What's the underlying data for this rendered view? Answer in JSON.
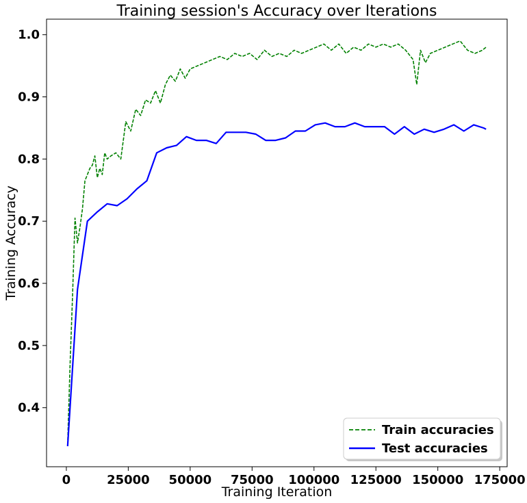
{
  "chart_data": {
    "type": "line",
    "title": "Training session's Accuracy over Iterations",
    "xlabel": "Training Iteration",
    "ylabel": "Training Accuracy",
    "xlim": [
      -8000,
      178000
    ],
    "ylim": [
      0.305,
      1.025
    ],
    "xticks": [
      0,
      25000,
      50000,
      75000,
      100000,
      125000,
      150000,
      175000
    ],
    "xtick_labels": [
      "0",
      "25000",
      "50000",
      "75000",
      "100000",
      "125000",
      "150000",
      "175000"
    ],
    "yticks": [
      0.4,
      0.5,
      0.6,
      0.7,
      0.8,
      0.9,
      1.0
    ],
    "ytick_labels": [
      "0.4",
      "0.5",
      "0.6",
      "0.7",
      "0.8",
      "0.9",
      "1.0"
    ],
    "grid": false,
    "legend_position": "bottom-right",
    "series": [
      {
        "name": "Train accuracies",
        "color": "#008000",
        "style": "dashed",
        "x": [
          500,
          1500,
          2500,
          3500,
          4500,
          5500,
          6500,
          7500,
          8500,
          9500,
          10500,
          11500,
          12500,
          13500,
          14500,
          15500,
          16500,
          18000,
          20000,
          22000,
          24000,
          26000,
          28000,
          30000,
          32000,
          34000,
          36000,
          38000,
          40000,
          42000,
          44000,
          46000,
          48000,
          50000,
          53000,
          56000,
          59000,
          62000,
          65000,
          68000,
          71000,
          74000,
          77000,
          80000,
          83000,
          86000,
          89000,
          92000,
          95000,
          98000,
          101000,
          104000,
          107000,
          110000,
          113000,
          116000,
          119000,
          122000,
          125000,
          128000,
          131000,
          134000,
          137000,
          140000,
          141500,
          143000,
          145000,
          147000,
          150000,
          153000,
          156000,
          159000,
          162000,
          165000,
          168000,
          169500
        ],
        "values": [
          0.34,
          0.47,
          0.58,
          0.705,
          0.665,
          0.69,
          0.72,
          0.765,
          0.775,
          0.785,
          0.79,
          0.805,
          0.77,
          0.785,
          0.775,
          0.81,
          0.8,
          0.805,
          0.81,
          0.8,
          0.86,
          0.845,
          0.88,
          0.87,
          0.895,
          0.89,
          0.91,
          0.89,
          0.92,
          0.935,
          0.925,
          0.945,
          0.93,
          0.945,
          0.95,
          0.955,
          0.96,
          0.965,
          0.96,
          0.97,
          0.965,
          0.97,
          0.96,
          0.975,
          0.965,
          0.97,
          0.965,
          0.975,
          0.97,
          0.975,
          0.98,
          0.985,
          0.975,
          0.985,
          0.97,
          0.98,
          0.975,
          0.985,
          0.98,
          0.985,
          0.98,
          0.985,
          0.975,
          0.96,
          0.92,
          0.975,
          0.955,
          0.97,
          0.975,
          0.98,
          0.985,
          0.99,
          0.975,
          0.97,
          0.975,
          0.98
        ]
      },
      {
        "name": "Test accuracies",
        "color": "#0000ff",
        "style": "solid",
        "x": [
          500,
          4500,
          8500,
          12500,
          16500,
          20500,
          24500,
          28500,
          32500,
          36500,
          40500,
          44500,
          48500,
          52500,
          56500,
          60500,
          64500,
          68500,
          72500,
          76500,
          80500,
          84500,
          88500,
          92500,
          96500,
          100500,
          104500,
          108500,
          112500,
          116500,
          120500,
          124500,
          128500,
          132500,
          136500,
          140500,
          144500,
          148500,
          152500,
          156500,
          160500,
          164500,
          168500,
          169500
        ],
        "values": [
          0.338,
          0.59,
          0.7,
          0.715,
          0.728,
          0.725,
          0.736,
          0.752,
          0.765,
          0.81,
          0.818,
          0.822,
          0.836,
          0.83,
          0.83,
          0.825,
          0.843,
          0.843,
          0.843,
          0.84,
          0.83,
          0.83,
          0.834,
          0.845,
          0.845,
          0.855,
          0.858,
          0.852,
          0.852,
          0.858,
          0.852,
          0.852,
          0.852,
          0.84,
          0.852,
          0.84,
          0.848,
          0.843,
          0.848,
          0.855,
          0.845,
          0.855,
          0.85,
          0.848
        ]
      }
    ]
  }
}
